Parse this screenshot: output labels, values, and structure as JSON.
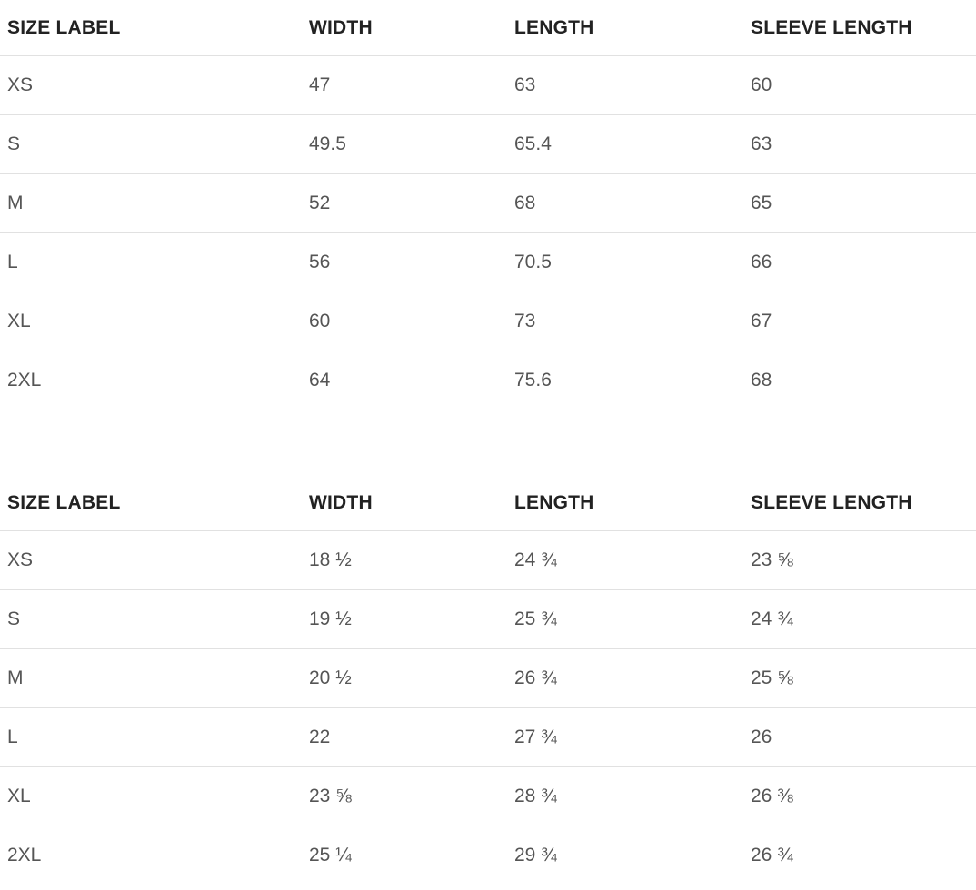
{
  "colors": {
    "background": "#ffffff",
    "header_text": "#222222",
    "body_text": "#555555",
    "divider": "#e1e1e1"
  },
  "tables": [
    {
      "id": "size-chart-metric",
      "headers": [
        "SIZE LABEL",
        "WIDTH",
        "LENGTH",
        "SLEEVE LENGTH"
      ],
      "rows": [
        [
          "XS",
          "47",
          "63",
          "60"
        ],
        [
          "S",
          "49.5",
          "65.4",
          "63"
        ],
        [
          "M",
          "52",
          "68",
          "65"
        ],
        [
          "L",
          "56",
          "70.5",
          "66"
        ],
        [
          "XL",
          "60",
          "73",
          "67"
        ],
        [
          "2XL",
          "64",
          "75.6",
          "68"
        ]
      ]
    },
    {
      "id": "size-chart-imperial",
      "headers": [
        "SIZE LABEL",
        "WIDTH",
        "LENGTH",
        "SLEEVE LENGTH"
      ],
      "rows": [
        [
          "XS",
          "18 ½",
          "24 ¾",
          "23 ⅝"
        ],
        [
          "S",
          "19 ½",
          "25 ¾",
          "24 ¾"
        ],
        [
          "M",
          "20 ½",
          "26 ¾",
          "25 ⅝"
        ],
        [
          "L",
          "22",
          "27 ¾",
          "26"
        ],
        [
          "XL",
          "23 ⅝",
          "28 ¾",
          "26 ⅜"
        ],
        [
          "2XL",
          "25 ¼",
          "29 ¾",
          "26 ¾"
        ]
      ]
    }
  ]
}
